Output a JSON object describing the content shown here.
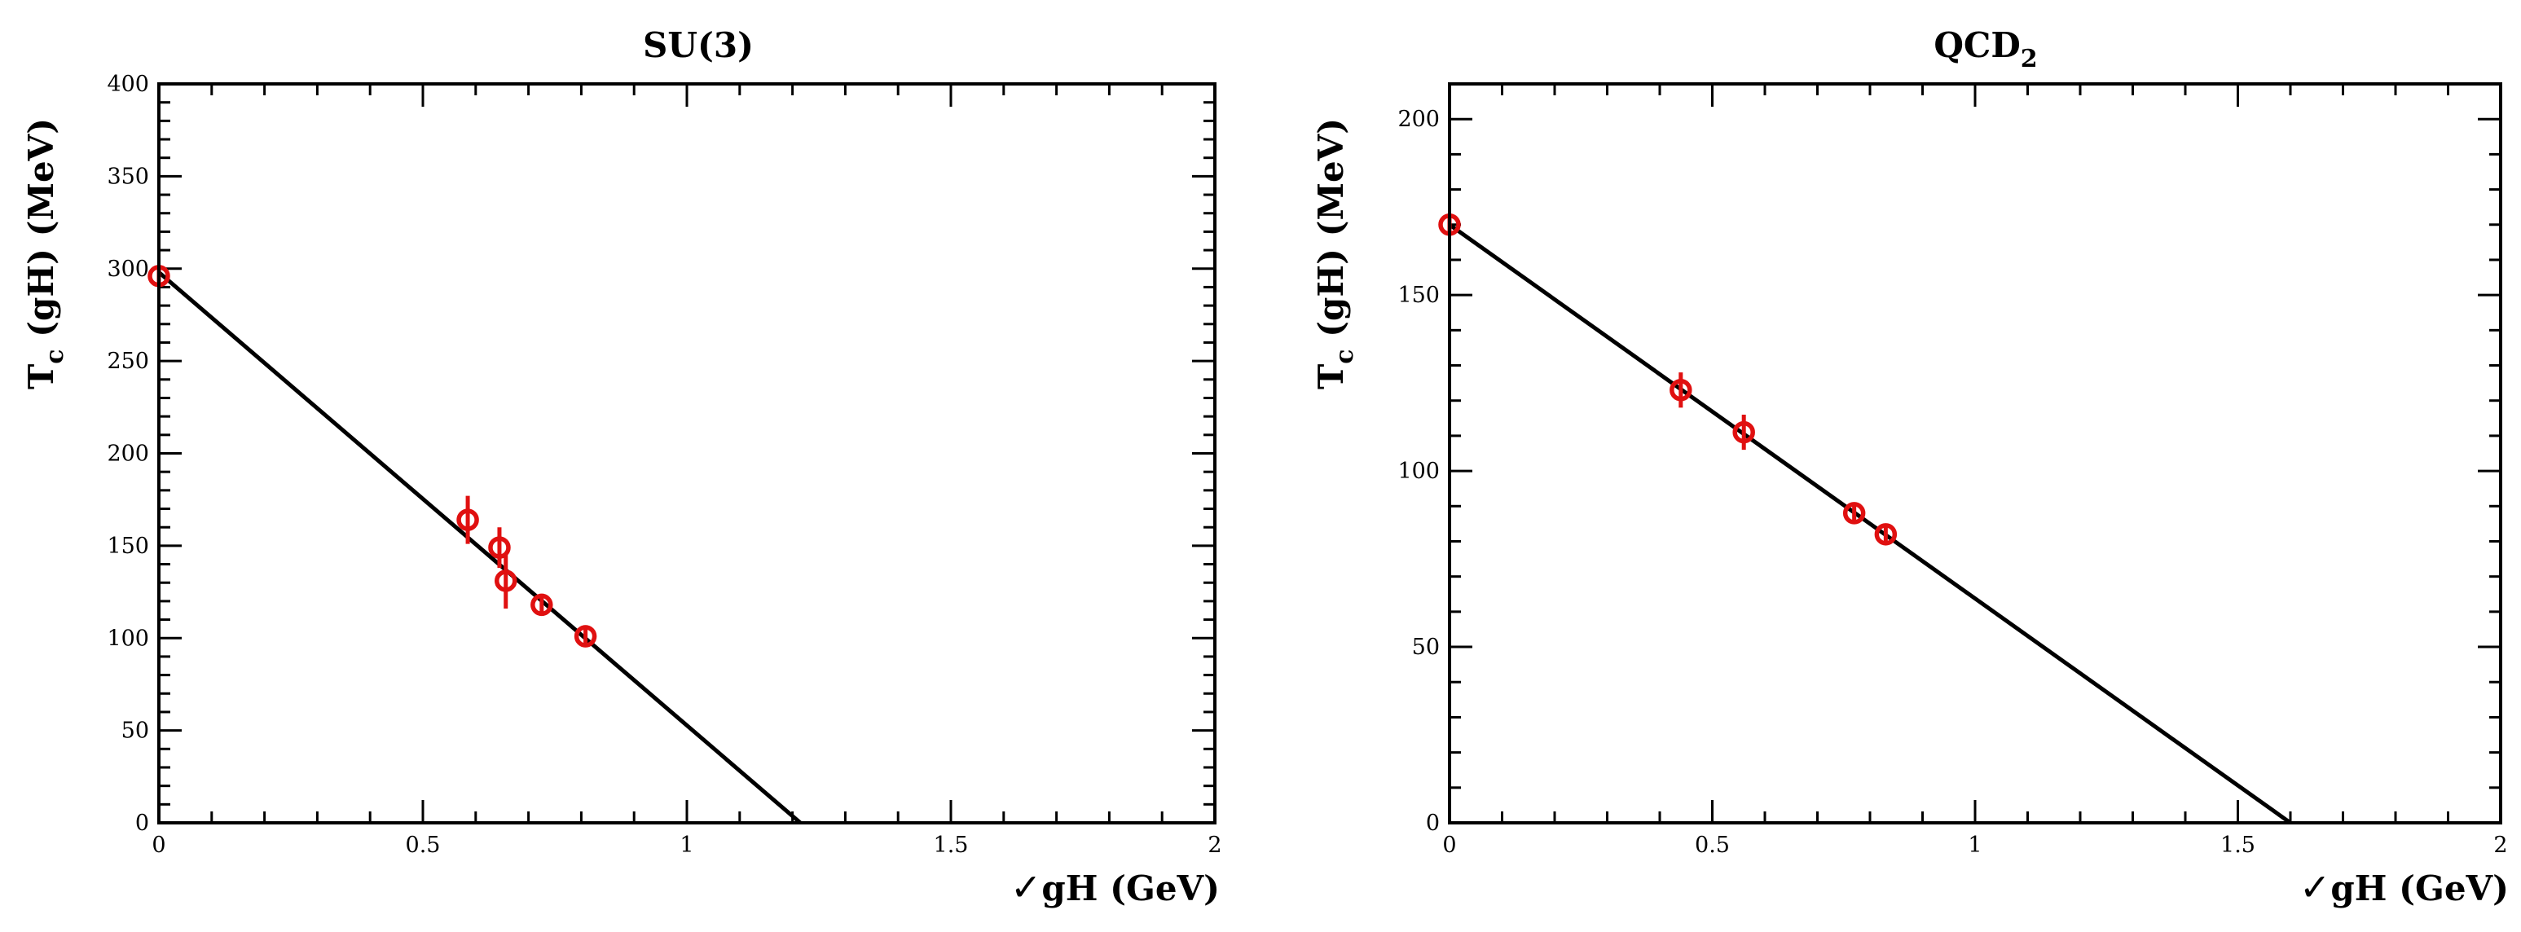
{
  "chart_data": [
    {
      "type": "scatter",
      "title": "SU(3)",
      "xlabel": "√gH  (GeV)",
      "ylabel": "T_c (gH)  (MeV)",
      "xlim": [
        0,
        2
      ],
      "ylim": [
        0,
        400
      ],
      "x_ticks": [
        0,
        0.5,
        1,
        1.5,
        2
      ],
      "x_tick_labels": [
        "0",
        "0.5",
        "1",
        "1.5",
        "2"
      ],
      "y_ticks": [
        0,
        50,
        100,
        150,
        200,
        250,
        300,
        350,
        400
      ],
      "y_tick_labels": [
        "0",
        "50",
        "100",
        "150",
        "200",
        "250",
        "300",
        "350",
        "400"
      ],
      "grid": false,
      "series": [
        {
          "marker": "open-circle",
          "color": "#e01010",
          "points": [
            {
              "x": 0.0,
              "y": 296,
              "yerr": 5
            },
            {
              "x": 0.585,
              "y": 164,
              "yerr": 13
            },
            {
              "x": 0.645,
              "y": 149,
              "yerr": 11
            },
            {
              "x": 0.657,
              "y": 131,
              "yerr": 15
            },
            {
              "x": 0.725,
              "y": 118,
              "yerr": 6
            },
            {
              "x": 0.808,
              "y": 101,
              "yerr": 6
            }
          ]
        }
      ],
      "fit_line": {
        "x": [
          0,
          1.215
        ],
        "y": [
          298,
          0
        ],
        "color": "#000000"
      }
    },
    {
      "type": "scatter",
      "title": "QCD₂",
      "xlabel": "√gH  (GeV)",
      "ylabel": "T_c (gH)  (MeV)",
      "xlim": [
        0,
        2
      ],
      "ylim": [
        0,
        210
      ],
      "x_ticks": [
        0,
        0.5,
        1,
        1.5,
        2
      ],
      "x_tick_labels": [
        "0",
        "0.5",
        "1",
        "1.5",
        "2"
      ],
      "y_ticks": [
        0,
        50,
        100,
        150,
        200
      ],
      "y_tick_labels": [
        "0",
        "50",
        "100",
        "150",
        "200"
      ],
      "grid": false,
      "series": [
        {
          "marker": "open-circle",
          "color": "#e01010",
          "points": [
            {
              "x": 0.0,
              "y": 170,
              "yerr": 3
            },
            {
              "x": 0.44,
              "y": 123,
              "yerr": 5
            },
            {
              "x": 0.56,
              "y": 111,
              "yerr": 5
            },
            {
              "x": 0.77,
              "y": 88,
              "yerr": 2
            },
            {
              "x": 0.83,
              "y": 82,
              "yerr": 2
            }
          ]
        }
      ],
      "fit_line": {
        "x": [
          0,
          1.6
        ],
        "y": [
          170,
          0
        ],
        "color": "#000000"
      }
    }
  ]
}
